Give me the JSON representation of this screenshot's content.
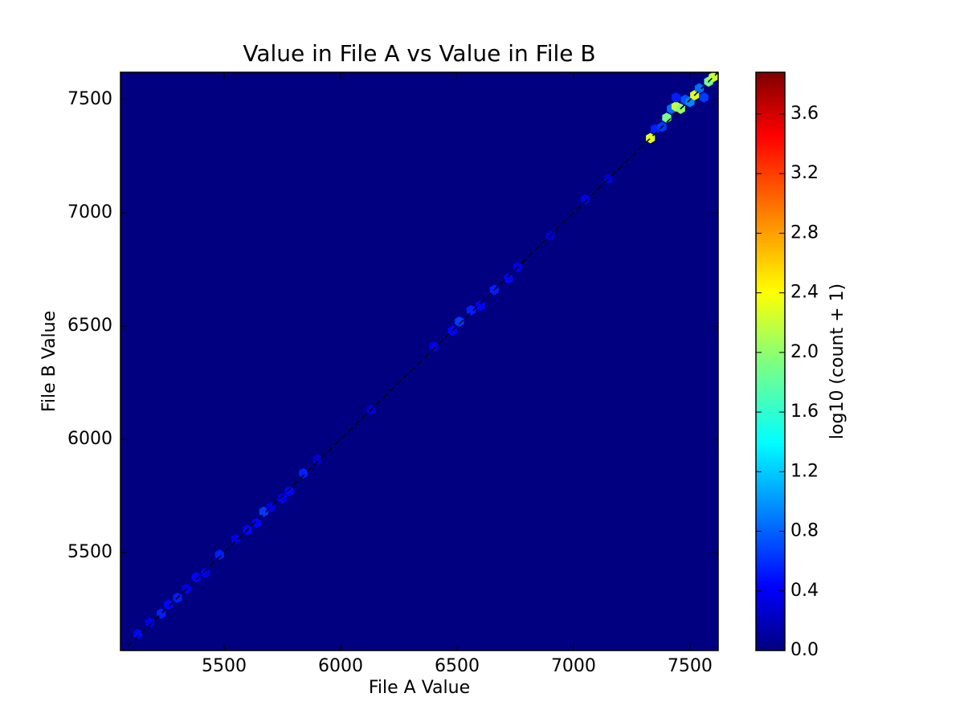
{
  "chart_data": {
    "type": "hexbin",
    "title": "Value in File A vs Value in File B",
    "x_label": "File A Value",
    "y_label": "File B Value",
    "colorbar_label": "log10 (count + 1)",
    "colormap": "jet",
    "xlim": [
      5055,
      7621
    ],
    "ylim": [
      5067,
      7621
    ],
    "xticks": [
      5500,
      6000,
      6500,
      7000,
      7500
    ],
    "yticks": [
      5500,
      6000,
      6500,
      7000,
      7500
    ],
    "clim": [
      0,
      3.88
    ],
    "cticks": [
      {
        "value": 0,
        "label": "0.0"
      },
      {
        "value": 0.4,
        "label": "0.4"
      },
      {
        "value": 0.8,
        "label": "0.8"
      },
      {
        "value": 1.2,
        "label": "1.2"
      },
      {
        "value": 1.6,
        "label": "1.6"
      },
      {
        "value": 2.0,
        "label": "2.0"
      },
      {
        "value": 2.4,
        "label": "2.4"
      },
      {
        "value": 2.8,
        "label": "2.8"
      },
      {
        "value": 3.2,
        "label": "3.2"
      },
      {
        "value": 3.6,
        "label": "3.6"
      }
    ],
    "x": [
      5130,
      5180,
      5230,
      5260,
      5300,
      5340,
      5380,
      5420,
      5480,
      5550,
      5600,
      5640,
      5670,
      5700,
      5750,
      5780,
      5840,
      5900,
      6130,
      6400,
      6480,
      6510,
      6560,
      6600,
      6660,
      6720,
      6760,
      6900,
      7050,
      7150,
      7330,
      7350,
      7380,
      7400,
      7420,
      7440,
      7440,
      7460,
      7480,
      7500,
      7520,
      7540,
      7560,
      7580,
      7600
    ],
    "y": [
      5140,
      5190,
      5230,
      5270,
      5300,
      5340,
      5390,
      5410,
      5490,
      5560,
      5600,
      5630,
      5680,
      5700,
      5740,
      5770,
      5850,
      5910,
      6130,
      6410,
      6480,
      6520,
      6570,
      6590,
      6660,
      6710,
      6760,
      6900,
      7060,
      7150,
      7330,
      7370,
      7380,
      7420,
      7460,
      7470,
      7510,
      7460,
      7500,
      7490,
      7520,
      7550,
      7510,
      7580,
      7600
    ],
    "values": [
      0.5,
      0.4,
      0.6,
      0.5,
      0.6,
      0.4,
      0.5,
      0.4,
      0.6,
      0.4,
      0.5,
      0.5,
      0.7,
      0.4,
      0.4,
      0.5,
      0.6,
      0.3,
      0.3,
      0.4,
      0.5,
      0.7,
      0.6,
      0.5,
      0.6,
      0.5,
      0.4,
      0.3,
      0.4,
      0.3,
      2.3,
      0.6,
      0.7,
      1.9,
      0.9,
      2.2,
      0.6,
      2.0,
      0.8,
      1.0,
      2.3,
      0.9,
      0.7,
      1.9,
      2.2
    ],
    "reference_line": {
      "x": [
        5055,
        7621
      ],
      "y": [
        5055,
        7621
      ],
      "color": "#000000",
      "dashed": true
    }
  }
}
